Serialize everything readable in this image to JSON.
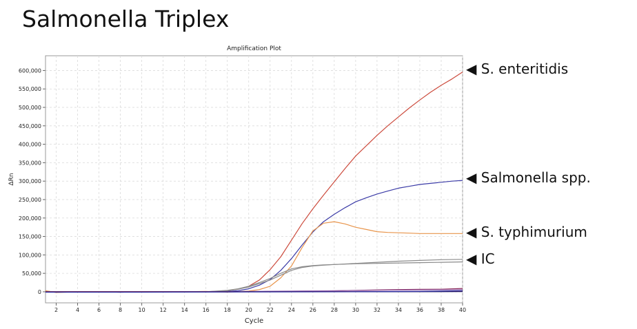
{
  "page_title": "Salmonella Triplex",
  "chart_data": {
    "type": "line",
    "title": "Amplification Plot",
    "xlabel": "Cycle",
    "ylabel": "ΔRn",
    "xlim": [
      1,
      40
    ],
    "ylim": [
      -30000,
      640000
    ],
    "xticks": [
      2,
      4,
      6,
      8,
      10,
      12,
      14,
      16,
      18,
      20,
      22,
      24,
      26,
      28,
      30,
      32,
      34,
      36,
      38,
      40
    ],
    "yticks": [
      0,
      50000,
      100000,
      150000,
      200000,
      250000,
      300000,
      350000,
      400000,
      450000,
      500000,
      550000,
      600000
    ],
    "ytick_labels": [
      "0",
      "50,000",
      "100,000",
      "150,000",
      "200,000",
      "250,000",
      "300,000",
      "350,000",
      "400,000",
      "450,000",
      "500,000",
      "550,000",
      "600,000"
    ],
    "grid": true,
    "series": [
      {
        "color": "#cc4a3c",
        "x": [
          1,
          2,
          4,
          6,
          8,
          10,
          12,
          14,
          16,
          17,
          18,
          19,
          20,
          21,
          22,
          23,
          24,
          25,
          26,
          27,
          28,
          29,
          30,
          31,
          32,
          33,
          34,
          35,
          36,
          37,
          38,
          39,
          40
        ],
        "y": [
          2000,
          -1000,
          0,
          0,
          0,
          0,
          0,
          0,
          0,
          1000,
          3000,
          7000,
          15000,
          32000,
          60000,
          95000,
          140000,
          185000,
          225000,
          262000,
          298000,
          334000,
          368000,
          396000,
          424000,
          450000,
          474000,
          498000,
          520000,
          541000,
          560000,
          577000,
          596000
        ]
      },
      {
        "color": "#3a3aa6",
        "x": [
          1,
          2,
          4,
          6,
          8,
          10,
          12,
          14,
          16,
          18,
          19,
          20,
          21,
          22,
          23,
          24,
          25,
          26,
          27,
          28,
          29,
          30,
          31,
          32,
          33,
          34,
          35,
          36,
          37,
          38,
          39,
          40
        ],
        "y": [
          0,
          -1000,
          0,
          0,
          -1000,
          0,
          0,
          0,
          0,
          1000,
          3000,
          8000,
          18000,
          33000,
          58000,
          90000,
          127000,
          162000,
          190000,
          210000,
          228000,
          244000,
          255000,
          265000,
          273000,
          281000,
          286000,
          291000,
          294000,
          297000,
          300000,
          302000
        ]
      },
      {
        "color": "#e8944a",
        "x": [
          1,
          2,
          4,
          6,
          8,
          10,
          12,
          14,
          16,
          18,
          20,
          21,
          22,
          23,
          24,
          25,
          26,
          27,
          28,
          29,
          30,
          31,
          32,
          33,
          34,
          35,
          36,
          37,
          38,
          39,
          40
        ],
        "y": [
          3000,
          -2000,
          0,
          0,
          -1000,
          0,
          0,
          0,
          1000,
          -1000,
          2000,
          6000,
          15000,
          38000,
          70000,
          120000,
          165000,
          186000,
          190000,
          184000,
          175000,
          169000,
          163000,
          161000,
          160000,
          159000,
          158000,
          158000,
          158000,
          158000,
          158000
        ]
      },
      {
        "color": "#8a8a8a",
        "x": [
          1,
          4,
          8,
          12,
          16,
          18,
          19,
          20,
          21,
          22,
          23,
          24,
          25,
          26,
          27,
          28,
          30,
          32,
          34,
          36,
          38,
          40
        ],
        "y": [
          0,
          0,
          0,
          0,
          0,
          3000,
          7000,
          13000,
          22000,
          32000,
          45000,
          58000,
          66000,
          70000,
          72000,
          74000,
          76000,
          77000,
          78000,
          79000,
          80000,
          81000
        ]
      },
      {
        "color": "#8a8a8a",
        "x": [
          1,
          4,
          8,
          12,
          16,
          18,
          19,
          20,
          21,
          22,
          23,
          24,
          25,
          26,
          27,
          28,
          30,
          32,
          34,
          36,
          38,
          40
        ],
        "y": [
          0,
          0,
          0,
          0,
          0,
          4000,
          8000,
          15000,
          25000,
          36000,
          50000,
          62000,
          68000,
          71000,
          73000,
          74000,
          77000,
          80000,
          83000,
          85000,
          87000,
          88000
        ]
      },
      {
        "color": "#8b2a5a",
        "x": [
          1,
          10,
          20,
          22,
          24,
          26,
          28,
          30,
          32,
          34,
          36,
          38,
          40
        ],
        "y": [
          0,
          0,
          0,
          1000,
          1500,
          2000,
          2500,
          4000,
          5000,
          6000,
          6500,
          7000,
          9000
        ]
      },
      {
        "color": "#9a6ab0",
        "x": [
          1,
          10,
          18,
          20,
          22,
          24,
          26,
          28,
          30,
          32,
          34,
          36,
          38,
          40
        ],
        "y": [
          0,
          0,
          500,
          1000,
          1500,
          2000,
          2500,
          3000,
          3500,
          4000,
          4500,
          5000,
          5500,
          6000
        ]
      },
      {
        "color": "#b83030",
        "x": [
          1,
          10,
          20,
          30,
          40
        ],
        "y": [
          0,
          0,
          0,
          500,
          1000
        ]
      },
      {
        "color": "#1f1f6e",
        "x": [
          1,
          10,
          20,
          30,
          40
        ],
        "y": [
          -500,
          -500,
          0,
          0,
          500
        ]
      },
      {
        "color": "#2a2aa0",
        "x": [
          1,
          10,
          20,
          30,
          36,
          40
        ],
        "y": [
          -1000,
          -1000,
          -500,
          0,
          1000,
          3000
        ]
      }
    ]
  },
  "annotations": [
    {
      "label": "S. enteritidis",
      "arrow": "◀"
    },
    {
      "label": "Salmonella spp.",
      "arrow": "◀"
    },
    {
      "label": "S. typhimurium",
      "arrow": "◀"
    },
    {
      "label": "IC",
      "arrow": "◀"
    }
  ]
}
